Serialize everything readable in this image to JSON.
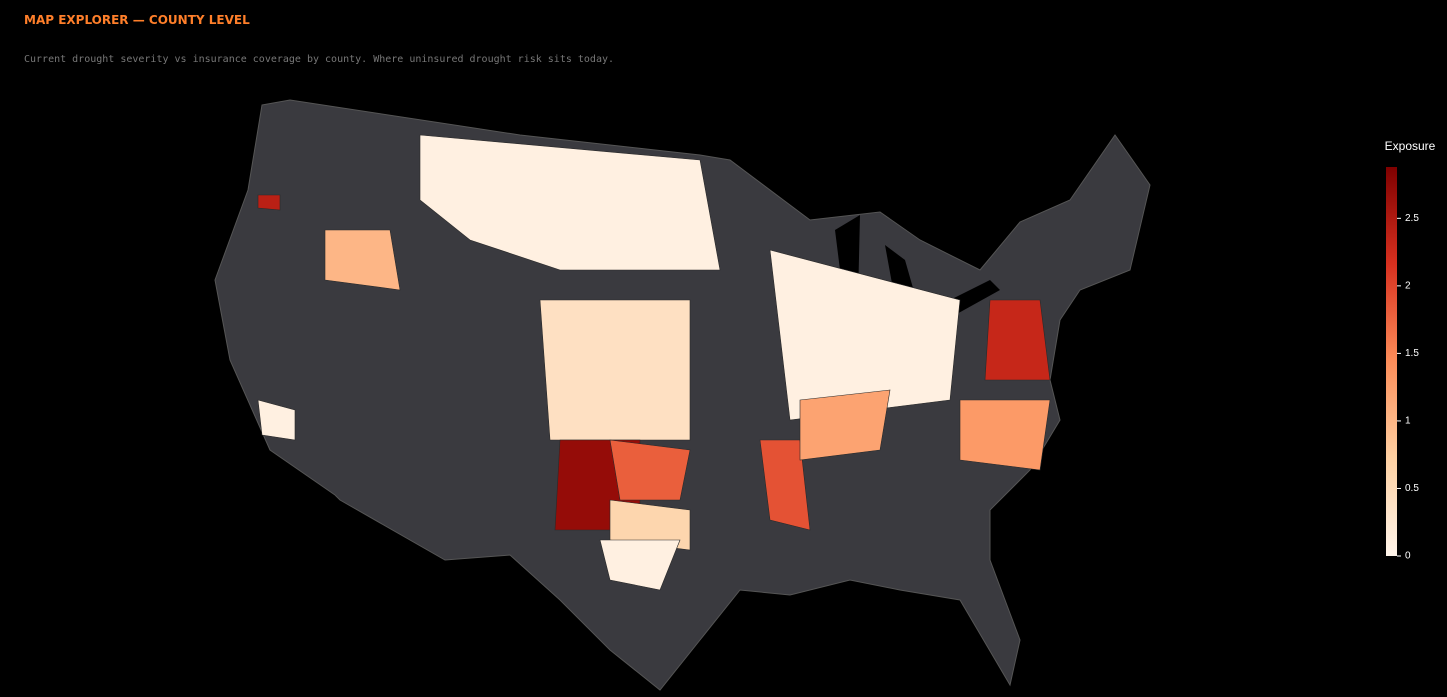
{
  "header": {
    "title": "MAP EXPLORER — COUNTY LEVEL",
    "subtitle": "Current drought severity vs insurance coverage by county. Where uninsured drought risk sits today."
  },
  "map": {
    "type": "choropleth",
    "colorbar_title": "Exposure",
    "zlim": [
      0,
      2.88
    ],
    "ticks": [
      0,
      0.5,
      1,
      1.5,
      2,
      2.5
    ],
    "colorscale": [
      "#fff5eb",
      "#fdd0a2",
      "#fc8d59",
      "#d7301f",
      "#7f0000"
    ],
    "land_color": "#3a3a3f",
    "region_values": [
      0.1,
      1.0,
      0.4,
      0.1,
      2.7,
      1.8,
      0.6,
      0.1,
      1.9,
      1.2,
      2.3,
      1.3,
      0.1,
      2.4
    ]
  }
}
